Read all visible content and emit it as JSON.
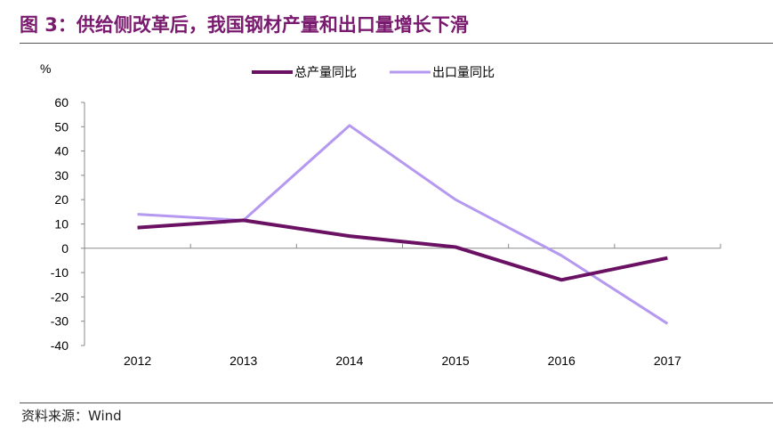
{
  "title": "图 3：供给侧改革后，我国钢材产量和出口量增长下滑",
  "source": "资料来源：Wind",
  "chart_data": {
    "type": "line",
    "title": "图 3：供给侧改革后，我国钢材产量和出口量增长下滑",
    "ylabel": "%",
    "xlabel": "",
    "categories": [
      "2012",
      "2013",
      "2014",
      "2015",
      "2016",
      "2017"
    ],
    "ylim": [
      -40,
      60
    ],
    "yticks": [
      60,
      50,
      40,
      30,
      20,
      10,
      0,
      -10,
      -20,
      -30,
      -40
    ],
    "grid": false,
    "legend_position": "top",
    "series": [
      {
        "name": "总产量同比",
        "color": "#6b1163",
        "values": [
          8.5,
          11.5,
          5,
          0.5,
          -13,
          -4
        ]
      },
      {
        "name": "出口量同比",
        "color": "#b598f0",
        "values": [
          14,
          11.5,
          50.5,
          20,
          -3,
          -31
        ]
      }
    ]
  }
}
